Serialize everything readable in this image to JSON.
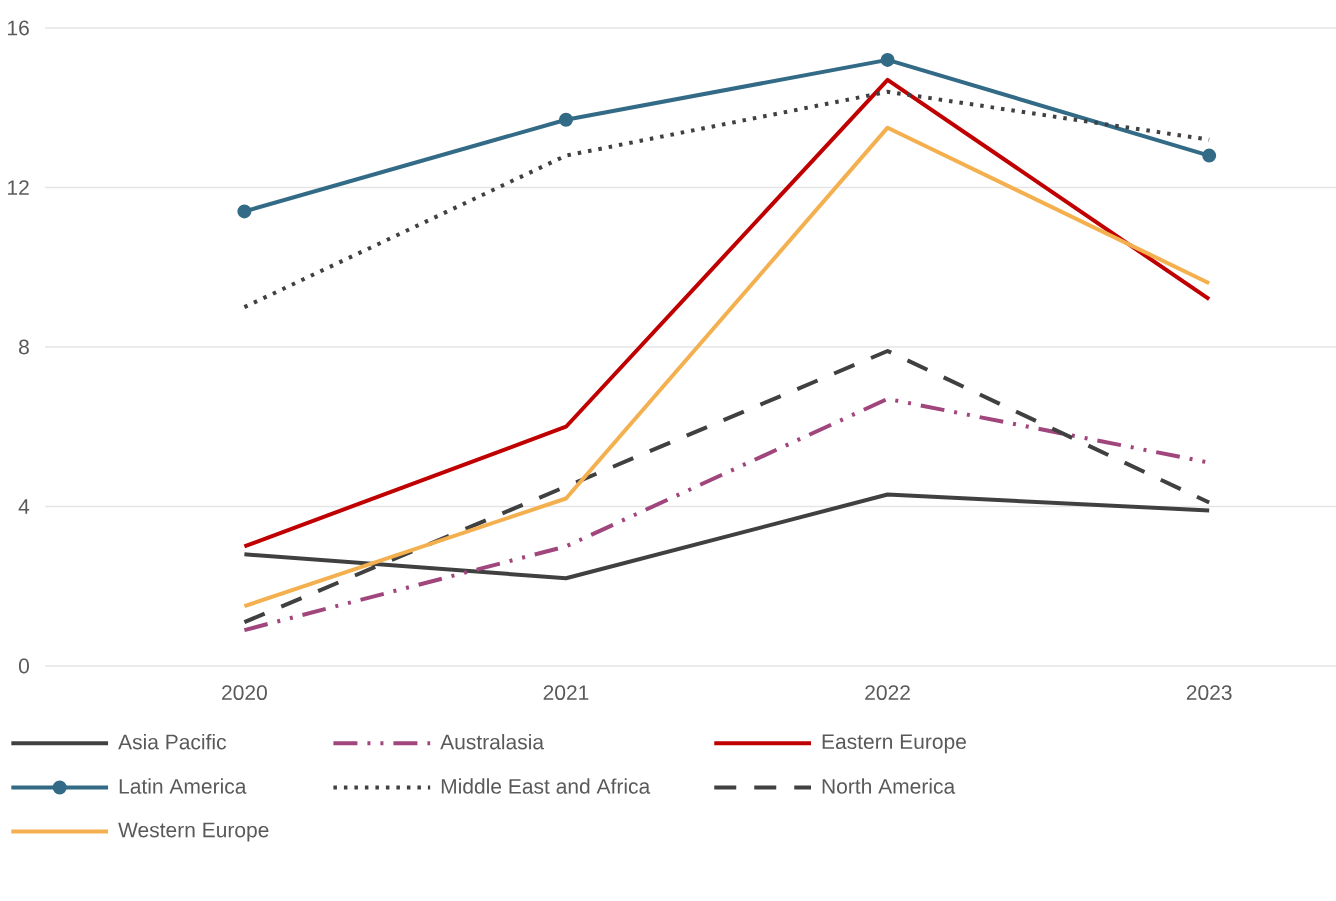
{
  "chart_data": {
    "type": "line",
    "categories": [
      "2020",
      "2021",
      "2022",
      "2023"
    ],
    "series": [
      {
        "name": "Asia Pacific",
        "color": "#404040",
        "line_style": "solid",
        "values": [
          2.8,
          2.2,
          4.3,
          3.9
        ]
      },
      {
        "name": "Australasia",
        "color": "#a0467c",
        "line_style": "dashdot",
        "values": [
          0.9,
          3.0,
          6.7,
          5.1
        ]
      },
      {
        "name": "Eastern Europe",
        "color": "#c00000",
        "line_style": "solid",
        "values": [
          3.0,
          6.0,
          14.7,
          9.2
        ]
      },
      {
        "name": "Latin America",
        "color": "#336b87",
        "line_style": "solid",
        "marker": "circle",
        "values": [
          11.4,
          13.7,
          15.2,
          12.8
        ]
      },
      {
        "name": "Middle East and Africa",
        "color": "#404040",
        "line_style": "dotted",
        "values": [
          9.0,
          12.8,
          14.4,
          13.2
        ]
      },
      {
        "name": "North America",
        "color": "#404040",
        "line_style": "dashed",
        "values": [
          1.1,
          4.5,
          7.9,
          4.1
        ]
      },
      {
        "name": "Western Europe",
        "color": "#f4b04e",
        "line_style": "solid",
        "values": [
          1.5,
          4.2,
          13.5,
          9.6
        ]
      }
    ],
    "ylim": [
      0,
      16
    ],
    "yticks": [
      0,
      4,
      8,
      12,
      16
    ],
    "grid": "y",
    "legend": "bottom"
  }
}
